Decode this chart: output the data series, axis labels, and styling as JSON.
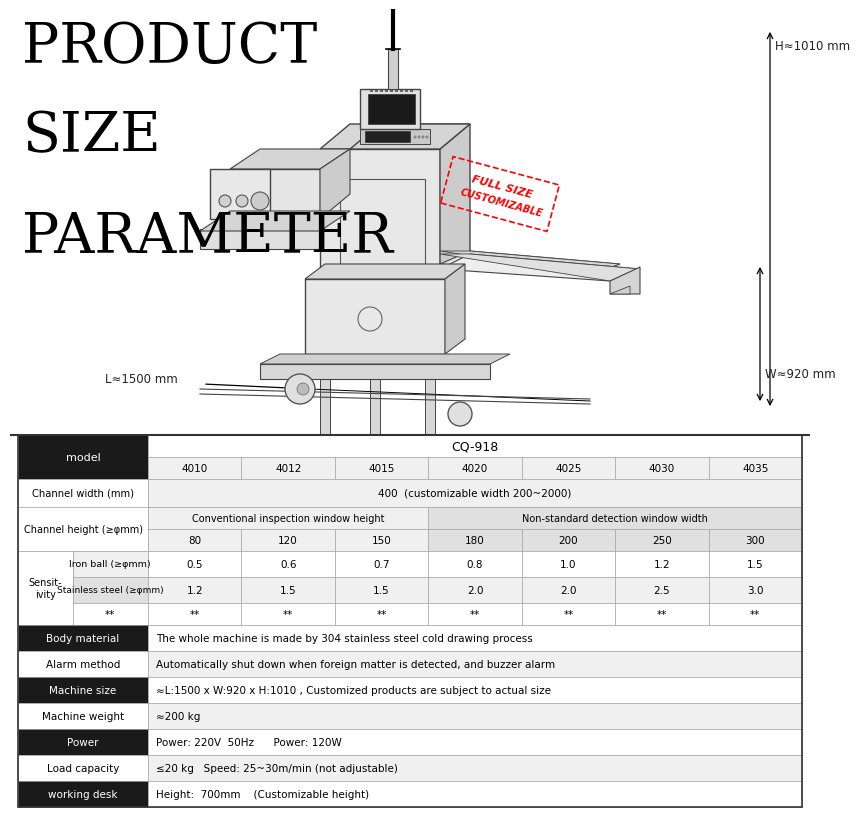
{
  "title_lines": [
    "PRODUCT",
    "SIZE",
    "PARAMETER"
  ],
  "dim_H": "H≈1010 mm",
  "dim_W": "W≈920 mm",
  "dim_L": "L≈1500 mm",
  "bg_color": "#ffffff",
  "model_header": "CQ-918",
  "models": [
    "4010",
    "4012",
    "4015",
    "4020",
    "4025",
    "4030",
    "4035"
  ],
  "channel_width_val": "400  (customizable width 200~2000)",
  "conv_header": "Conventional inspection window height",
  "nonstand_header": "Non-standard detection window width",
  "ch_heights": [
    "80",
    "120",
    "150",
    "180",
    "200",
    "250",
    "300"
  ],
  "iron_ball": [
    "0.5",
    "0.6",
    "0.7",
    "0.8",
    "1.0",
    "1.2",
    "1.5"
  ],
  "stainless": [
    "1.2",
    "1.5",
    "1.5",
    "2.0",
    "2.0",
    "2.5",
    "3.0"
  ],
  "body_material": "The whole machine is made by 304 stainless steel cold drawing process",
  "alarm_method": "Automatically shut down when foreign matter is detected, and buzzer alarm",
  "machine_size": "≈L:1500 x W:920 x H:1010 , Customized products are subject to actual size",
  "machine_weight": "≈200 kg",
  "power": "Power: 220V  50Hz      Power: 120W",
  "load_capacity": "≤20 kg   Speed: 25~30m/min (not adjustable)",
  "working_desk": "Height:  700mm    (Customizable height)",
  "black_bg": "#1a1a1a",
  "white_bg": "#ffffff",
  "light_gray": "#f0f0f0",
  "mid_gray": "#e0e0e0",
  "border_col": "#aaaaaa",
  "black_text": "#000000",
  "white_text": "#ffffff"
}
